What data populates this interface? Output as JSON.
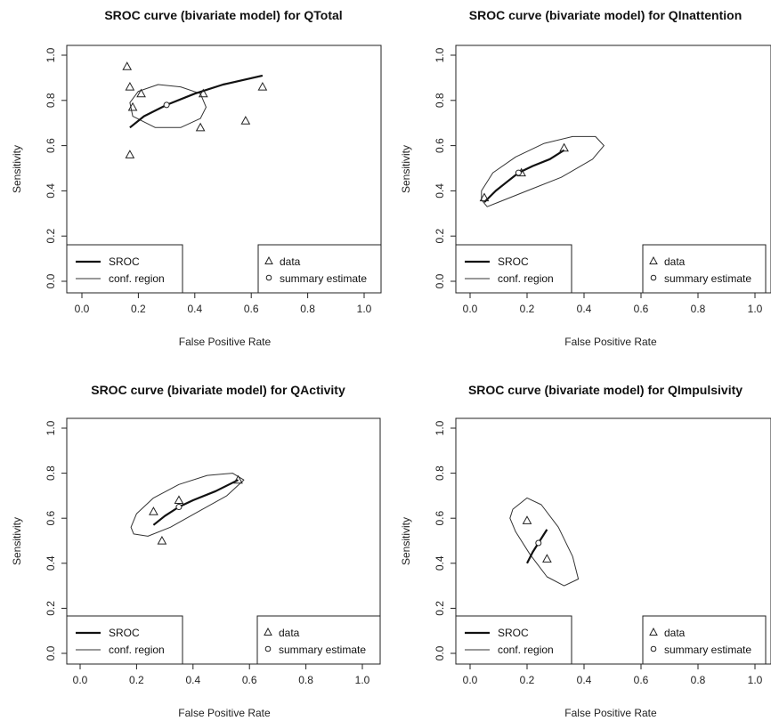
{
  "chart_data": [
    {
      "type": "scatter",
      "title": "SROC curve (bivariate model) for QTotal",
      "xlabel": "False Positive Rate",
      "ylabel": "Sensitivity",
      "xlim": [
        0,
        1
      ],
      "ylim": [
        0,
        1
      ],
      "x_ticks": [
        "0.0",
        "0.2",
        "0.4",
        "0.6",
        "0.8",
        "1.0"
      ],
      "y_ticks": [
        "0.0",
        "0.2",
        "0.4",
        "0.6",
        "0.8",
        "1.0"
      ],
      "legend_left": [
        "SROC",
        "conf. region"
      ],
      "legend_right": [
        "data",
        "summary estimate"
      ],
      "data_points": [
        {
          "x": 0.16,
          "y": 0.95
        },
        {
          "x": 0.17,
          "y": 0.86
        },
        {
          "x": 0.21,
          "y": 0.83
        },
        {
          "x": 0.18,
          "y": 0.77
        },
        {
          "x": 0.17,
          "y": 0.56
        },
        {
          "x": 0.42,
          "y": 0.68
        },
        {
          "x": 0.43,
          "y": 0.83
        },
        {
          "x": 0.58,
          "y": 0.71
        },
        {
          "x": 0.64,
          "y": 0.86
        }
      ],
      "summary_estimate": {
        "x": 0.3,
        "y": 0.78
      },
      "sroc_curve": [
        [
          0.17,
          0.68
        ],
        [
          0.22,
          0.73
        ],
        [
          0.3,
          0.78
        ],
        [
          0.4,
          0.83
        ],
        [
          0.5,
          0.87
        ],
        [
          0.64,
          0.91
        ]
      ],
      "conf_region": [
        [
          0.18,
          0.73
        ],
        [
          0.26,
          0.68
        ],
        [
          0.35,
          0.68
        ],
        [
          0.42,
          0.72
        ],
        [
          0.44,
          0.77
        ],
        [
          0.42,
          0.83
        ],
        [
          0.35,
          0.86
        ],
        [
          0.27,
          0.87
        ],
        [
          0.2,
          0.84
        ],
        [
          0.17,
          0.79
        ],
        [
          0.18,
          0.73
        ]
      ]
    },
    {
      "type": "scatter",
      "title": "SROC curve (bivariate model) for QInattention",
      "xlabel": "False Positive Rate",
      "ylabel": "Sensitivity",
      "xlim": [
        0,
        1
      ],
      "ylim": [
        0,
        1
      ],
      "x_ticks": [
        "0.0",
        "0.2",
        "0.4",
        "0.6",
        "0.8",
        "1.0"
      ],
      "y_ticks": [
        "0.0",
        "0.2",
        "0.4",
        "0.6",
        "0.8",
        "1.0"
      ],
      "legend_left": [
        "SROC",
        "conf. region"
      ],
      "legend_right": [
        "data",
        "summary estimate"
      ],
      "data_points": [
        {
          "x": 0.05,
          "y": 0.37
        },
        {
          "x": 0.18,
          "y": 0.48
        },
        {
          "x": 0.33,
          "y": 0.59
        }
      ],
      "summary_estimate": {
        "x": 0.17,
        "y": 0.48
      },
      "sroc_curve": [
        [
          0.05,
          0.35
        ],
        [
          0.09,
          0.4
        ],
        [
          0.13,
          0.44
        ],
        [
          0.17,
          0.48
        ],
        [
          0.22,
          0.51
        ],
        [
          0.28,
          0.54
        ],
        [
          0.33,
          0.58
        ]
      ],
      "conf_region": [
        [
          0.06,
          0.33
        ],
        [
          0.1,
          0.35
        ],
        [
          0.2,
          0.4
        ],
        [
          0.32,
          0.46
        ],
        [
          0.43,
          0.54
        ],
        [
          0.47,
          0.6
        ],
        [
          0.44,
          0.64
        ],
        [
          0.36,
          0.64
        ],
        [
          0.26,
          0.61
        ],
        [
          0.16,
          0.55
        ],
        [
          0.08,
          0.48
        ],
        [
          0.04,
          0.4
        ],
        [
          0.04,
          0.36
        ],
        [
          0.06,
          0.33
        ]
      ]
    },
    {
      "type": "scatter",
      "title": "SROC curve (bivariate model) for QActivity",
      "xlabel": "False Positive Rate",
      "ylabel": "Sensitivity",
      "xlim": [
        0,
        1
      ],
      "ylim": [
        0,
        1
      ],
      "x_ticks": [
        "0.0",
        "0.2",
        "0.4",
        "0.6",
        "0.8",
        "1.0"
      ],
      "y_ticks": [
        "0.0",
        "0.2",
        "0.4",
        "0.6",
        "0.8",
        "1.0"
      ],
      "legend_left": [
        "SROC",
        "conf. region"
      ],
      "legend_right": [
        "data",
        "summary estimate"
      ],
      "data_points": [
        {
          "x": 0.26,
          "y": 0.63
        },
        {
          "x": 0.35,
          "y": 0.68
        },
        {
          "x": 0.29,
          "y": 0.5
        },
        {
          "x": 0.56,
          "y": 0.77
        }
      ],
      "summary_estimate": {
        "x": 0.35,
        "y": 0.65
      },
      "sroc_curve": [
        [
          0.26,
          0.57
        ],
        [
          0.3,
          0.61
        ],
        [
          0.35,
          0.65
        ],
        [
          0.4,
          0.68
        ],
        [
          0.48,
          0.72
        ],
        [
          0.56,
          0.77
        ]
      ],
      "conf_region": [
        [
          0.19,
          0.53
        ],
        [
          0.24,
          0.52
        ],
        [
          0.32,
          0.56
        ],
        [
          0.42,
          0.63
        ],
        [
          0.52,
          0.7
        ],
        [
          0.58,
          0.77
        ],
        [
          0.54,
          0.8
        ],
        [
          0.45,
          0.79
        ],
        [
          0.35,
          0.75
        ],
        [
          0.26,
          0.69
        ],
        [
          0.2,
          0.62
        ],
        [
          0.18,
          0.56
        ],
        [
          0.19,
          0.53
        ]
      ]
    },
    {
      "type": "scatter",
      "title": "SROC curve (bivariate model) for QImpulsivity",
      "xlabel": "False Positive Rate",
      "ylabel": "Sensitivity",
      "xlim": [
        0,
        1
      ],
      "ylim": [
        0,
        1
      ],
      "x_ticks": [
        "0.0",
        "0.2",
        "0.4",
        "0.6",
        "0.8",
        "1.0"
      ],
      "y_ticks": [
        "0.0",
        "0.2",
        "0.4",
        "0.6",
        "0.8",
        "1.0"
      ],
      "legend_left": [
        "SROC",
        "conf. region"
      ],
      "legend_right": [
        "data",
        "summary estimate"
      ],
      "data_points": [
        {
          "x": 0.2,
          "y": 0.59
        },
        {
          "x": 0.27,
          "y": 0.42
        }
      ],
      "summary_estimate": {
        "x": 0.24,
        "y": 0.49
      },
      "sroc_curve": [
        [
          0.2,
          0.4
        ],
        [
          0.22,
          0.45
        ],
        [
          0.24,
          0.49
        ],
        [
          0.26,
          0.53
        ],
        [
          0.27,
          0.55
        ]
      ],
      "conf_region": [
        [
          0.15,
          0.64
        ],
        [
          0.2,
          0.69
        ],
        [
          0.25,
          0.66
        ],
        [
          0.31,
          0.56
        ],
        [
          0.36,
          0.43
        ],
        [
          0.38,
          0.33
        ],
        [
          0.33,
          0.3
        ],
        [
          0.27,
          0.34
        ],
        [
          0.21,
          0.44
        ],
        [
          0.16,
          0.54
        ],
        [
          0.14,
          0.6
        ],
        [
          0.15,
          0.64
        ]
      ]
    }
  ]
}
